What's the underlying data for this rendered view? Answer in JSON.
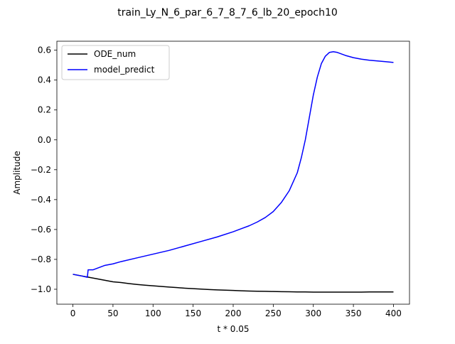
{
  "chart_data": {
    "type": "line",
    "title": "train_Ly_N_6_par_6_7_8_7_6_lb_20_epoch10",
    "xlabel": "t * 0.05",
    "ylabel": "Amplitude",
    "xlim": [
      -20,
      420
    ],
    "ylim": [
      -1.1,
      0.66
    ],
    "xticks": [
      0,
      50,
      100,
      150,
      200,
      250,
      300,
      350,
      400
    ],
    "xtick_labels": [
      "0",
      "50",
      "100",
      "150",
      "200",
      "250",
      "300",
      "350",
      "400"
    ],
    "yticks": [
      -1.0,
      -0.8,
      -0.6,
      -0.4,
      -0.2,
      0.0,
      0.2,
      0.4,
      0.6
    ],
    "ytick_labels": [
      "−1.0",
      "−0.8",
      "−0.6",
      "−0.4",
      "−0.2",
      "0.0",
      "0.2",
      "0.4",
      "0.6"
    ],
    "grid": false,
    "legend_position": "top-left",
    "series": [
      {
        "name": "ODE_num",
        "color": "#000000",
        "x": [
          0,
          10,
          20,
          30,
          40,
          50,
          60,
          70,
          80,
          90,
          100,
          110,
          120,
          130,
          140,
          150,
          160,
          170,
          180,
          190,
          200,
          210,
          220,
          230,
          240,
          250,
          260,
          270,
          280,
          290,
          300,
          310,
          320,
          330,
          340,
          350,
          360,
          370,
          380,
          390,
          400
        ],
        "y": [
          -0.9,
          -0.91,
          -0.92,
          -0.93,
          -0.94,
          -0.95,
          -0.955,
          -0.962,
          -0.968,
          -0.973,
          -0.977,
          -0.981,
          -0.985,
          -0.989,
          -0.993,
          -0.996,
          -0.999,
          -1.002,
          -1.004,
          -1.006,
          -1.008,
          -1.01,
          -1.012,
          -1.013,
          -1.014,
          -1.015,
          -1.016,
          -1.017,
          -1.018,
          -1.018,
          -1.019,
          -1.019,
          -1.019,
          -1.019,
          -1.019,
          -1.019,
          -1.019,
          -1.018,
          -1.018,
          -1.018,
          -1.018
        ]
      },
      {
        "name": "model_predict",
        "color": "#0000ff",
        "x": [
          0,
          10,
          18,
          19,
          20,
          25,
          30,
          35,
          40,
          50,
          60,
          80,
          100,
          120,
          140,
          160,
          180,
          200,
          210,
          220,
          230,
          240,
          250,
          260,
          270,
          280,
          285,
          290,
          295,
          300,
          305,
          310,
          315,
          320,
          325,
          330,
          340,
          350,
          360,
          370,
          380,
          390,
          400
        ],
        "y": [
          -0.9,
          -0.91,
          -0.92,
          -0.87,
          -0.87,
          -0.87,
          -0.86,
          -0.85,
          -0.84,
          -0.83,
          -0.815,
          -0.79,
          -0.765,
          -0.74,
          -0.71,
          -0.68,
          -0.65,
          -0.615,
          -0.595,
          -0.575,
          -0.55,
          -0.52,
          -0.48,
          -0.42,
          -0.34,
          -0.22,
          -0.12,
          0.0,
          0.15,
          0.3,
          0.42,
          0.51,
          0.56,
          0.585,
          0.59,
          0.585,
          0.565,
          0.55,
          0.54,
          0.533,
          0.528,
          0.523,
          0.518
        ]
      }
    ]
  }
}
